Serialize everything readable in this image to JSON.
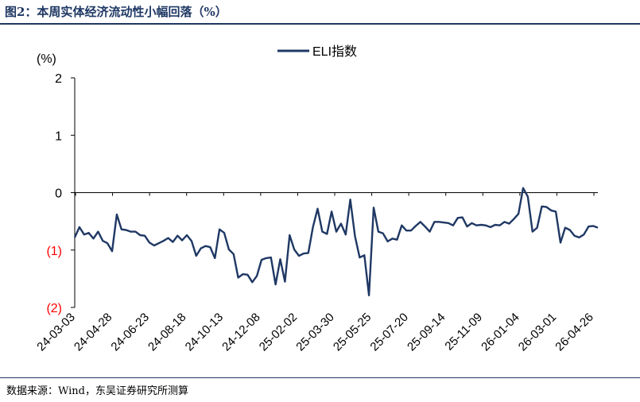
{
  "figure": {
    "title": "图2：本周实体经济流动性小幅回落（%）",
    "source": "数据来源：Wind，东吴证券研究所测算"
  },
  "colors": {
    "line": "#1f3864",
    "negative_tick": "#ff0000",
    "text": "#000000"
  },
  "chart_data": {
    "type": "line",
    "unit_label": "(%)",
    "ylim": [
      -2,
      2
    ],
    "y_ticks": [
      {
        "value": 2,
        "label": "2"
      },
      {
        "value": 1,
        "label": "1"
      },
      {
        "value": 0,
        "label": "0"
      },
      {
        "value": -1,
        "label": "(1)"
      },
      {
        "value": -2,
        "label": "(2)"
      }
    ],
    "x_tick_labels": [
      "24-03-03",
      "24-04-28",
      "24-06-23",
      "24-08-18",
      "24-10-13",
      "24-12-08",
      "25-02-02",
      "25-03-30",
      "25-05-25",
      "25-07-20",
      "25-09-14",
      "25-11-09",
      "26-01-04",
      "26-03-01",
      "26-04-26"
    ],
    "legend": "top-center",
    "grid": false,
    "series": [
      {
        "name": "ELI指数",
        "values": [
          -0.78,
          -0.6,
          -0.73,
          -0.7,
          -0.8,
          -0.68,
          -0.84,
          -0.88,
          -1.02,
          -0.38,
          -0.64,
          -0.65,
          -0.68,
          -0.68,
          -0.74,
          -0.75,
          -0.87,
          -0.92,
          -0.88,
          -0.84,
          -0.79,
          -0.86,
          -0.75,
          -0.83,
          -0.74,
          -0.84,
          -1.1,
          -0.97,
          -0.93,
          -0.95,
          -1.14,
          -0.64,
          -0.7,
          -0.99,
          -1.07,
          -1.48,
          -1.42,
          -1.43,
          -1.56,
          -1.45,
          -1.17,
          -1.14,
          -1.13,
          -1.6,
          -1.16,
          -1.55,
          -0.74,
          -0.99,
          -1.1,
          -1.06,
          -1.05,
          -0.6,
          -0.28,
          -0.68,
          -0.72,
          -0.33,
          -0.68,
          -0.54,
          -0.73,
          -0.12,
          -0.76,
          -1.13,
          -1.09,
          -1.79,
          -0.26,
          -0.68,
          -0.71,
          -0.85,
          -0.8,
          -0.82,
          -0.57,
          -0.66,
          -0.66,
          -0.58,
          -0.51,
          -0.59,
          -0.68,
          -0.51,
          -0.51,
          -0.52,
          -0.53,
          -0.57,
          -0.44,
          -0.43,
          -0.59,
          -0.53,
          -0.57,
          -0.56,
          -0.57,
          -0.6,
          -0.56,
          -0.57,
          -0.51,
          -0.54,
          -0.46,
          -0.37,
          0.08,
          -0.07,
          -0.68,
          -0.61,
          -0.24,
          -0.25,
          -0.31,
          -0.33,
          -0.87,
          -0.61,
          -0.65,
          -0.75,
          -0.78,
          -0.73,
          -0.59,
          -0.58,
          -0.61
        ]
      }
    ]
  }
}
